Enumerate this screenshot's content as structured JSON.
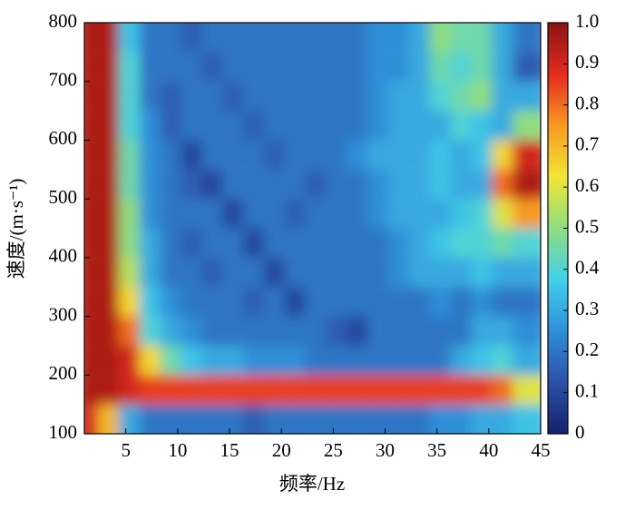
{
  "chart_data": {
    "type": "heatmap",
    "xlabel": "频率/Hz",
    "ylabel": "速度/(m·s⁻¹)",
    "xlim": [
      1,
      45
    ],
    "ylim": [
      100,
      800
    ],
    "xticks": [
      5,
      10,
      15,
      20,
      25,
      30,
      35,
      40,
      45
    ],
    "yticks": [
      100,
      200,
      300,
      400,
      500,
      600,
      700,
      800
    ],
    "clim": [
      0,
      1
    ],
    "cticks": [
      0,
      0.1,
      0.2,
      0.3,
      0.4,
      0.5,
      0.6,
      0.7,
      0.8,
      0.9,
      {
        "value": 1,
        "label": "1.0"
      }
    ],
    "colormap": [
      "#14226b",
      "#2c50a8",
      "#2f8fd8",
      "#42d0ea",
      "#8fdd80",
      "#f2e533",
      "#f79a20",
      "#e42a1e",
      "#8a1414"
    ],
    "x": [
      2,
      4,
      6,
      8,
      10,
      12,
      14,
      16,
      18,
      20,
      22,
      24,
      26,
      28,
      30,
      32,
      34,
      36,
      38,
      40,
      42,
      44
    ],
    "y": [
      125,
      175,
      225,
      275,
      325,
      375,
      425,
      475,
      525,
      575,
      625,
      675,
      725,
      775
    ],
    "z": [
      [
        0.9,
        0.7,
        0.3,
        0.2,
        0.2,
        0.2,
        0.2,
        0.2,
        0.15,
        0.2,
        0.2,
        0.2,
        0.2,
        0.2,
        0.2,
        0.2,
        0.2,
        0.25,
        0.25,
        0.3,
        0.3,
        0.35
      ],
      [
        0.95,
        0.95,
        0.9,
        0.85,
        0.85,
        0.85,
        0.85,
        0.85,
        0.85,
        0.85,
        0.85,
        0.85,
        0.85,
        0.85,
        0.85,
        0.85,
        0.85,
        0.85,
        0.85,
        0.85,
        0.8,
        0.6
      ],
      [
        0.95,
        0.95,
        0.9,
        0.65,
        0.45,
        0.35,
        0.3,
        0.3,
        0.25,
        0.25,
        0.25,
        0.2,
        0.2,
        0.2,
        0.2,
        0.2,
        0.2,
        0.2,
        0.3,
        0.35,
        0.4,
        0.3
      ],
      [
        0.95,
        0.95,
        0.8,
        0.4,
        0.3,
        0.25,
        0.2,
        0.2,
        0.2,
        0.2,
        0.2,
        0.2,
        0.15,
        0.1,
        0.2,
        0.2,
        0.2,
        0.2,
        0.2,
        0.3,
        0.3,
        0.25
      ],
      [
        0.95,
        0.95,
        0.65,
        0.35,
        0.25,
        0.2,
        0.2,
        0.2,
        0.15,
        0.2,
        0.1,
        0.2,
        0.2,
        0.2,
        0.2,
        0.2,
        0.2,
        0.25,
        0.2,
        0.25,
        0.2,
        0.2
      ],
      [
        0.95,
        0.95,
        0.55,
        0.3,
        0.2,
        0.2,
        0.15,
        0.2,
        0.2,
        0.1,
        0.2,
        0.2,
        0.2,
        0.2,
        0.2,
        0.25,
        0.3,
        0.3,
        0.3,
        0.35,
        0.3,
        0.3
      ],
      [
        0.95,
        0.95,
        0.5,
        0.3,
        0.2,
        0.15,
        0.2,
        0.2,
        0.1,
        0.2,
        0.2,
        0.2,
        0.2,
        0.2,
        0.2,
        0.25,
        0.3,
        0.35,
        0.4,
        0.4,
        0.45,
        0.4
      ],
      [
        0.95,
        0.95,
        0.5,
        0.25,
        0.2,
        0.2,
        0.2,
        0.1,
        0.2,
        0.2,
        0.15,
        0.2,
        0.2,
        0.2,
        0.25,
        0.3,
        0.3,
        0.3,
        0.35,
        0.4,
        0.6,
        0.75
      ],
      [
        0.95,
        0.95,
        0.45,
        0.25,
        0.2,
        0.15,
        0.1,
        0.2,
        0.2,
        0.2,
        0.2,
        0.15,
        0.2,
        0.2,
        0.25,
        0.3,
        0.3,
        0.35,
        0.3,
        0.3,
        0.8,
        0.95
      ],
      [
        0.95,
        0.95,
        0.45,
        0.25,
        0.2,
        0.1,
        0.2,
        0.2,
        0.2,
        0.15,
        0.2,
        0.2,
        0.2,
        0.25,
        0.3,
        0.3,
        0.3,
        0.35,
        0.3,
        0.35,
        0.65,
        0.9
      ],
      [
        0.95,
        0.95,
        0.4,
        0.25,
        0.15,
        0.2,
        0.2,
        0.2,
        0.15,
        0.2,
        0.2,
        0.2,
        0.2,
        0.2,
        0.25,
        0.3,
        0.3,
        0.3,
        0.4,
        0.35,
        0.3,
        0.5
      ],
      [
        0.95,
        0.95,
        0.4,
        0.2,
        0.15,
        0.2,
        0.2,
        0.15,
        0.2,
        0.2,
        0.2,
        0.2,
        0.2,
        0.2,
        0.25,
        0.3,
        0.3,
        0.4,
        0.45,
        0.5,
        0.3,
        0.3
      ],
      [
        0.95,
        0.95,
        0.4,
        0.2,
        0.2,
        0.2,
        0.15,
        0.2,
        0.2,
        0.2,
        0.2,
        0.2,
        0.2,
        0.2,
        0.25,
        0.25,
        0.3,
        0.45,
        0.4,
        0.45,
        0.3,
        0.15
      ],
      [
        0.95,
        0.95,
        0.35,
        0.2,
        0.2,
        0.15,
        0.2,
        0.2,
        0.2,
        0.2,
        0.2,
        0.2,
        0.2,
        0.2,
        0.25,
        0.25,
        0.3,
        0.5,
        0.45,
        0.45,
        0.3,
        0.2
      ]
    ]
  }
}
